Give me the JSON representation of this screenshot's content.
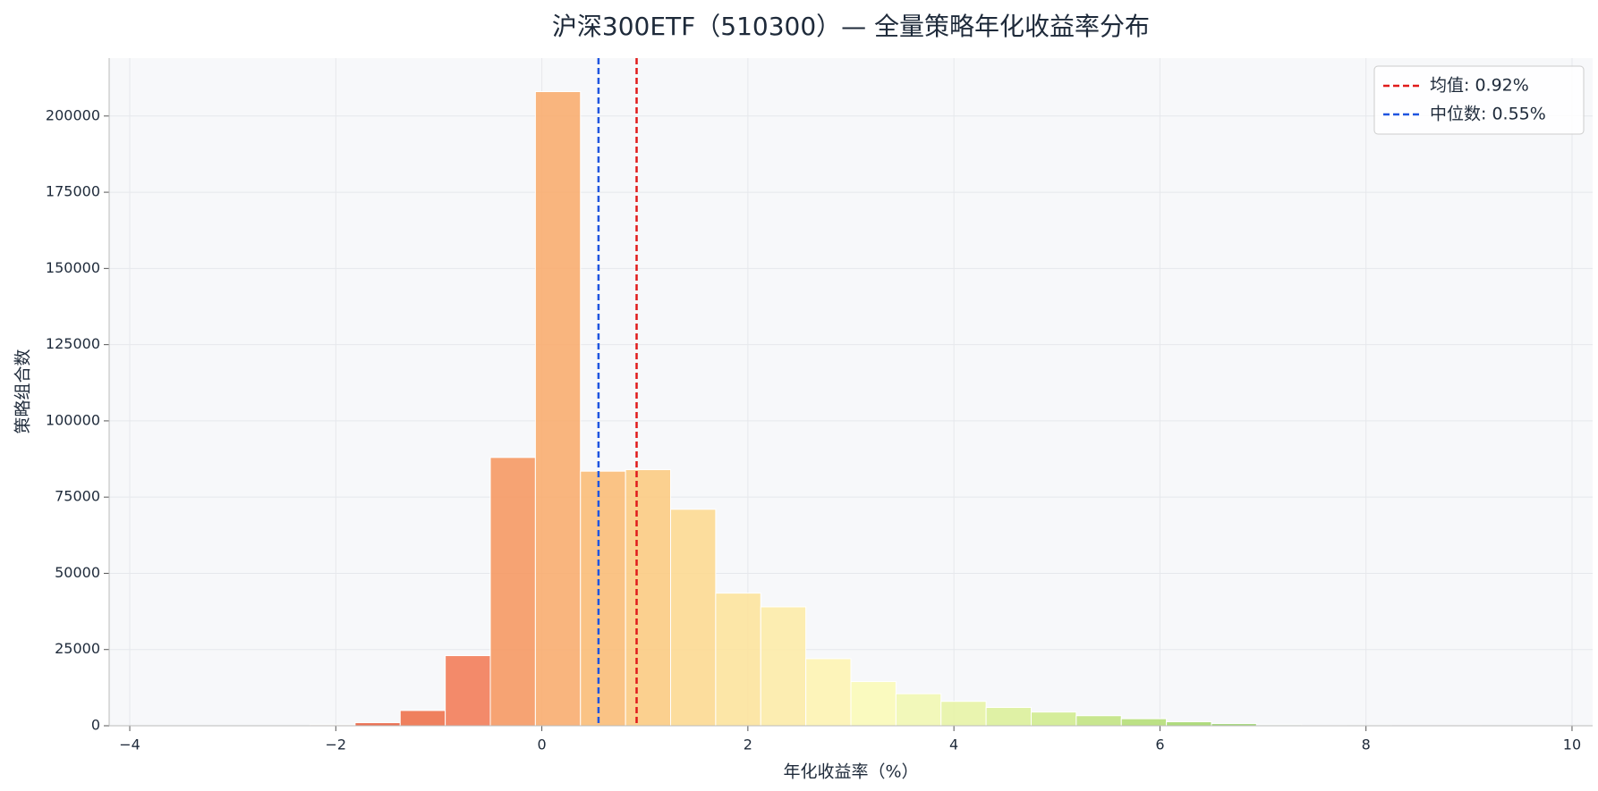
{
  "chart_data": {
    "type": "histogram",
    "title": "沪深300ETF（510300）— 全量策略年化收益率分布",
    "x_label": "年化收益率（%）",
    "y_label": "策略组合数",
    "bins": [
      -4,
      -3.5625,
      -3.125,
      -2.6875,
      -2.25,
      -1.8125,
      -1.375,
      -0.9375,
      -0.5,
      -0.0625,
      0.375,
      0.8125,
      1.25,
      1.6875,
      2.125,
      2.5625,
      3,
      3.4375,
      3.875,
      4.3125,
      4.75,
      5.1875,
      5.625,
      6.0625,
      6.5,
      6.9375,
      7.375,
      7.8125,
      8.25,
      8.6875,
      9.125,
      9.5625,
      10
    ],
    "counts": [
      0,
      0,
      0,
      0,
      300,
      1000,
      5000,
      23000,
      88000,
      208000,
      83500,
      84000,
      71000,
      43500,
      39000,
      22000,
      14500,
      10500,
      8000,
      6000,
      4500,
      3300,
      2300,
      1300,
      700,
      300,
      150,
      80,
      40,
      20,
      10,
      5
    ],
    "colors": [
      "#c81e27",
      "#cf2a2a",
      "#d6392f",
      "#dc4834",
      "#e35539",
      "#e8603d",
      "#ee6e48",
      "#f27a55",
      "#f69660",
      "#f9ab6c",
      "#fbbb74",
      "#fcca80",
      "#fdd890",
      "#fde29b",
      "#fdeba6",
      "#fef3b0",
      "#fbf9b6",
      "#f1f7b0",
      "#e7f3a4",
      "#dcef99",
      "#d0ea8d",
      "#c2e380",
      "#b4dd74",
      "#a5d66b",
      "#96cf64",
      "#86c85e",
      "#75c05a",
      "#64b656",
      "#52ab52",
      "#41a04d",
      "#2f9548",
      "#1f8a43"
    ],
    "xlim": [
      -4.2,
      10.2
    ],
    "ylim": [
      0,
      219000
    ],
    "xticks": [
      {
        "value": -4,
        "label": "−4"
      },
      {
        "value": -2,
        "label": "−2"
      },
      0,
      2,
      4,
      6,
      8,
      10
    ],
    "yticks": [
      0,
      25000,
      50000,
      75000,
      100000,
      125000,
      150000,
      175000,
      200000
    ],
    "grid": true,
    "legend": "upper right",
    "lines": [
      {
        "label": "均值: 0.92%",
        "value": 0.92,
        "color": "#e01b1b"
      },
      {
        "label": "中位数: 0.55%",
        "value": 0.55,
        "color": "#1f55e0"
      }
    ]
  }
}
